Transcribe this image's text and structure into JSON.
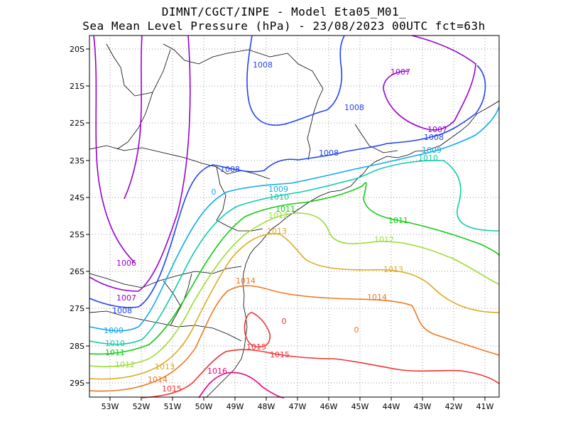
{
  "title_line1": "DIMNT/CGCT/INPE -  Model Eta05_M01_",
  "title_line2": "Sea Mean Level Pressure (hPa) - 23/08/2023 00UTC fct=63h",
  "axes": {
    "x_ticks": [
      "53W",
      "52W",
      "51W",
      "50W",
      "49W",
      "48W",
      "47W",
      "46W",
      "45W",
      "44W",
      "43W",
      "42W",
      "41W"
    ],
    "y_ticks": [
      "20S",
      "21S",
      "22S",
      "23S",
      "24S",
      "25S",
      "26S",
      "27S",
      "28S",
      "29S"
    ]
  },
  "contour_colors": {
    "1006": "#9900cc",
    "1007": "#9900cc",
    "1008": "#2244ee",
    "1009": "#11aaee",
    "1010": "#11ccaa",
    "1011": "#11cc11",
    "1012": "#99dd33",
    "1013": "#ddaa22",
    "1014": "#ee7722",
    "1015": "#ee3333",
    "1016": "#ee0088"
  },
  "contour_labels": [
    {
      "text": "1006",
      "level": "1006"
    },
    {
      "text": "1007",
      "level": "1007"
    },
    {
      "text": "1007",
      "level": "1007"
    },
    {
      "text": "1007",
      "level": "1007"
    },
    {
      "text": "1008",
      "level": "1008"
    },
    {
      "text": "1008",
      "level": "1008"
    },
    {
      "text": "1008",
      "level": "1008"
    },
    {
      "text": "1008",
      "level": "1008"
    },
    {
      "text": "1008",
      "level": "1008"
    },
    {
      "text": "1008",
      "level": "1008"
    },
    {
      "text": "1009",
      "level": "1009"
    },
    {
      "text": "1009",
      "level": "1009"
    },
    {
      "text": "1009",
      "level": "1009"
    },
    {
      "text": "1010",
      "level": "1010"
    },
    {
      "text": "1010",
      "level": "1010"
    },
    {
      "text": "1010",
      "level": "1010"
    },
    {
      "text": "1011",
      "level": "1011"
    },
    {
      "text": "1011",
      "level": "1011"
    },
    {
      "text": "1011",
      "level": "1011"
    },
    {
      "text": "1012",
      "level": "1012"
    },
    {
      "text": "1012",
      "level": "1012"
    },
    {
      "text": "1012",
      "level": "1012"
    },
    {
      "text": "1013",
      "level": "1013"
    },
    {
      "text": "1013",
      "level": "1013"
    },
    {
      "text": "1013",
      "level": "1013"
    },
    {
      "text": "1014",
      "level": "1014"
    },
    {
      "text": "1014",
      "level": "1014"
    },
    {
      "text": "1014",
      "level": "1014"
    },
    {
      "text": "1015",
      "level": "1015"
    },
    {
      "text": "1015",
      "level": "1015"
    },
    {
      "text": "1015",
      "level": "1015"
    },
    {
      "text": "1016",
      "level": "1016"
    },
    {
      "text": "0",
      "level": "1009"
    },
    {
      "text": "0",
      "level": "1015"
    },
    {
      "text": "0",
      "level": "1014"
    }
  ]
}
